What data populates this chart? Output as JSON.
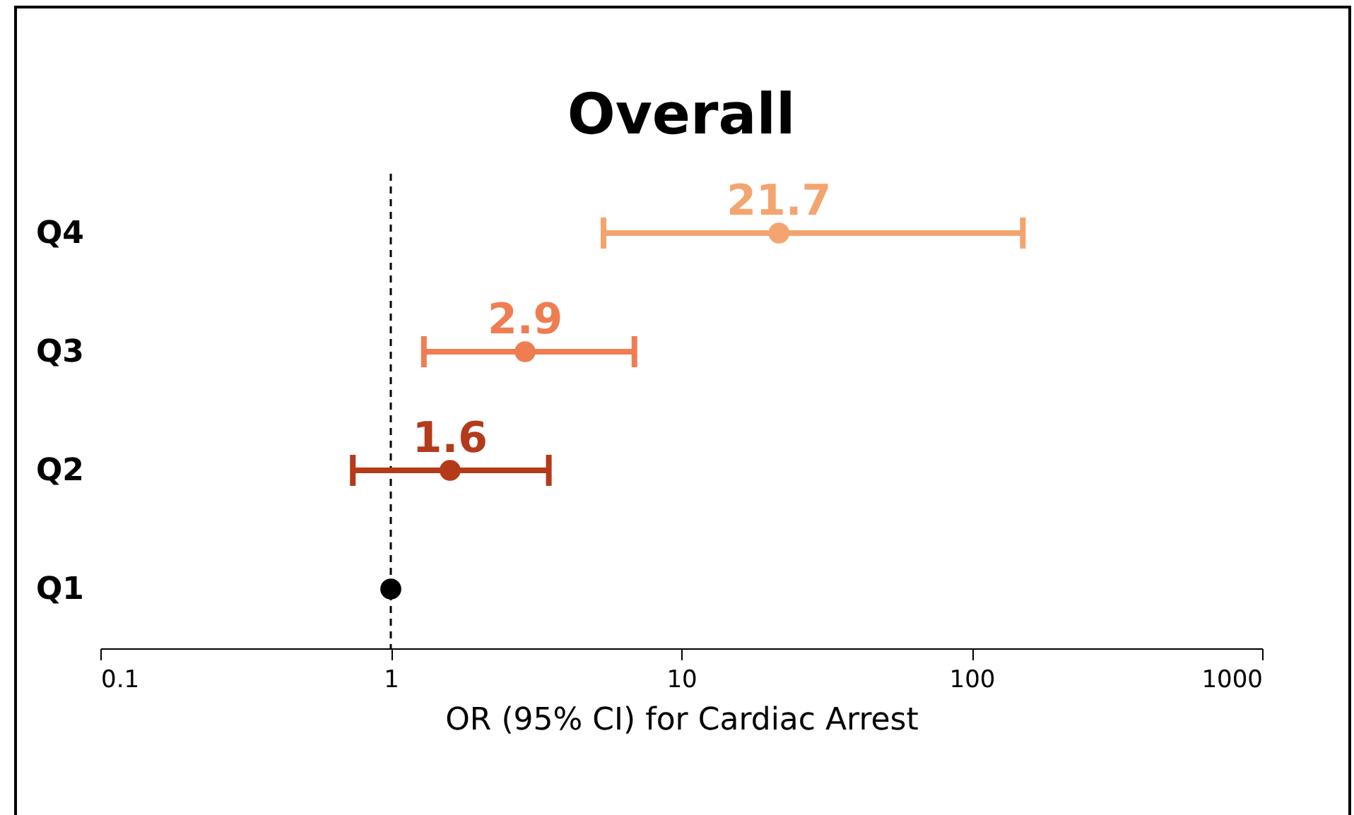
{
  "chart_data": {
    "type": "scatter",
    "title": "Overall",
    "xlabel": "OR (95% CI) for Cardiac Arrest",
    "orientation": "horizontal",
    "categories": [
      "Q4",
      "Q3",
      "Q2",
      "Q1"
    ],
    "values": [
      21.7,
      2.9,
      1.6,
      1
    ],
    "errors": [
      [
        5.4,
        150
      ],
      [
        1.3,
        6.9
      ],
      [
        0.74,
        3.5
      ],
      null
    ],
    "colors": [
      "#f4a46e",
      "#ef7d52",
      "#b43a1a",
      "#000000"
    ],
    "value_labels": [
      "21.7",
      "2.9",
      "1.6",
      null
    ],
    "log": "x",
    "xlim": [
      0.1,
      1000
    ],
    "xticks": [
      0.1,
      1,
      10,
      100,
      1000
    ],
    "ref_lines": [
      {
        "axis": "x",
        "value": 1,
        "line_style": "dashed",
        "color": "#000000"
      }
    ],
    "marker": "circle",
    "grid": false
  }
}
